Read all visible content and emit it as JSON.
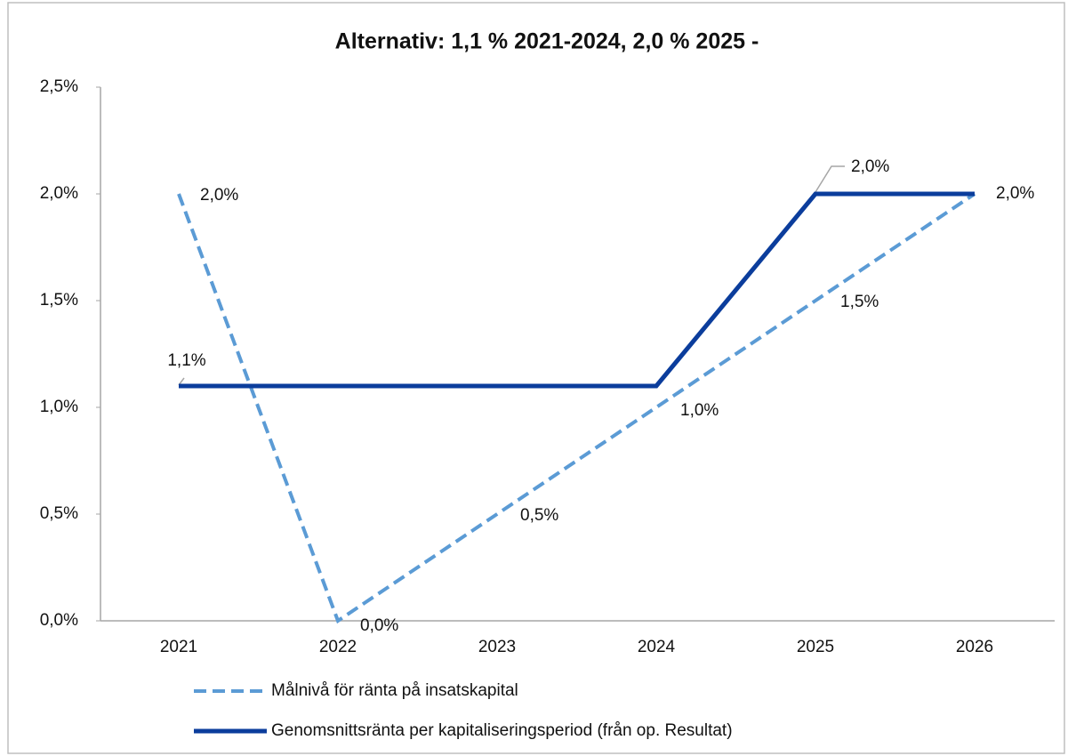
{
  "chart_data": {
    "type": "line",
    "title": "Alternativ: 1,1 % 2021-2024,  2,0 % 2025 -",
    "categories": [
      "2021",
      "2022",
      "2023",
      "2024",
      "2025",
      "2026"
    ],
    "series": [
      {
        "name": "Målnivå för ränta på insatskapital",
        "color": "#5b9bd5",
        "dashed": true,
        "values": [
          2.0,
          0.0,
          0.5,
          1.0,
          1.5,
          2.0
        ],
        "value_labels": [
          "2,0%",
          "0,0%",
          "0,5%",
          "1,0%",
          "1,5%",
          null
        ]
      },
      {
        "name": "Genomsnittsränta per kapitaliseringsperiod (från op. Resultat)",
        "color": "#0b3d9c",
        "dashed": false,
        "values": [
          1.1,
          1.1,
          1.1,
          1.1,
          2.0,
          2.0
        ],
        "value_labels": [
          "1,1%",
          null,
          null,
          null,
          "2,0%",
          "2,0%"
        ]
      }
    ],
    "ylim": [
      0,
      2.5
    ],
    "yticks": [
      {
        "value": 0,
        "label": "0,0%"
      },
      {
        "value": 0.5,
        "label": "0,5%"
      },
      {
        "value": 1.0,
        "label": "1,0%"
      },
      {
        "value": 1.5,
        "label": "1,5%"
      },
      {
        "value": 2.0,
        "label": "2,0%"
      },
      {
        "value": 2.5,
        "label": "2,5%"
      }
    ],
    "grid": false,
    "legend": "bottom"
  }
}
